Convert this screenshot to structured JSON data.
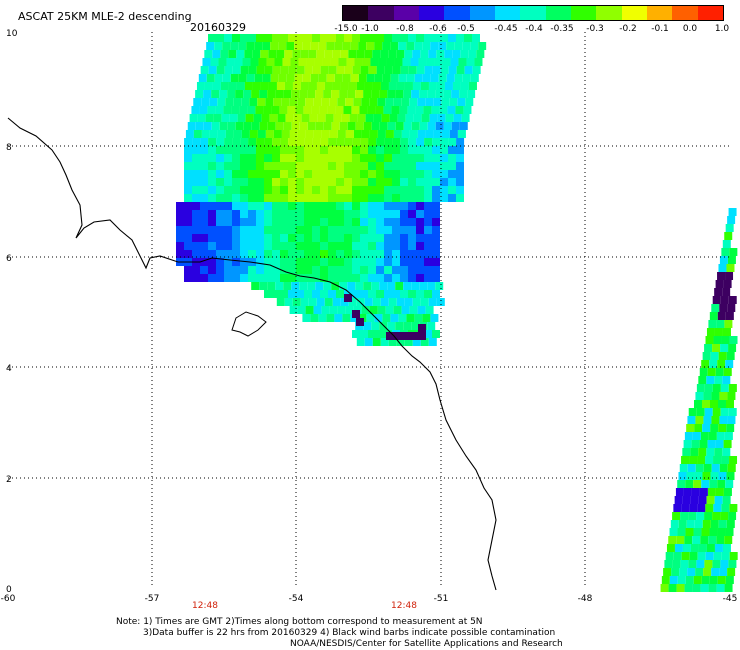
{
  "header": {
    "title": "ASCAT 25KM MLE-2 descending",
    "date": "20160329"
  },
  "colorbar": {
    "labels": [
      "-15.0",
      "-1.0",
      "-0.8",
      "-0.6",
      "-0.5",
      "-0.45",
      "-0.4",
      "-0.35",
      "-0.3",
      "-0.2",
      "-0.1",
      "0.0",
      "1.0"
    ],
    "colors": [
      "#1a001a",
      "#3d0061",
      "#5a00a8",
      "#2a00e0",
      "#0050ff",
      "#0096ff",
      "#00e0ff",
      "#00ffc0",
      "#00ff60",
      "#30ff00",
      "#90ff00",
      "#f0ff00",
      "#ffb000",
      "#ff6000",
      "#ff2000"
    ]
  },
  "axes": {
    "lat_labels": [
      "10",
      "8",
      "6",
      "4",
      "2",
      "0"
    ],
    "lon_labels": [
      "-60",
      "-57",
      "-54",
      "-51",
      "-48",
      "-45"
    ],
    "time_labels": [
      "12:48",
      "12:48"
    ]
  },
  "notes": {
    "line1": "Note: 1) Times are GMT 2)Times along bottom correspond to measurement at 5N",
    "line2": "3)Data buffer is 22 hrs from 20160329 4) Black wind barbs indicate possible contamination",
    "line3": "NOAA/NESDIS/Center for Satellite Applications and Research"
  }
}
